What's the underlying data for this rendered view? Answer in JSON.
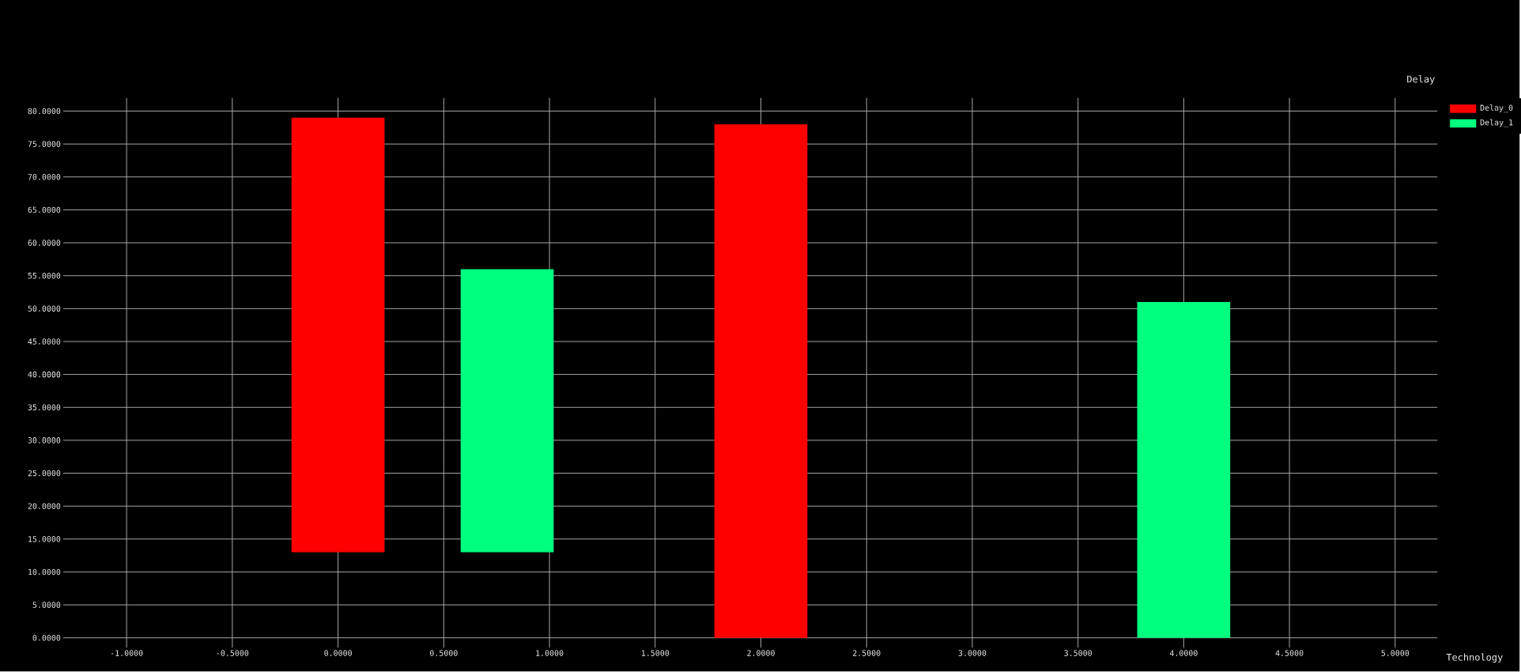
{
  "chart_data": {
    "type": "bar",
    "ylabel": "Delay",
    "xlabel": "Technology",
    "series": [
      {
        "name": "Delay_0",
        "color": "#ff0000",
        "x": [
          0,
          2
        ],
        "base": [
          13,
          0
        ],
        "values": [
          66,
          78
        ]
      },
      {
        "name": "Delay_1",
        "color": "#00ff7f",
        "x": [
          0.8,
          4
        ],
        "base": [
          13,
          0
        ],
        "values": [
          43,
          51
        ]
      }
    ],
    "xlim": [
      -1.3,
      5.2
    ],
    "ylim": [
      -1.5,
      82
    ],
    "xticks": [
      {
        "value": -1,
        "label": "-1.0000"
      },
      {
        "value": -0.5,
        "label": "-0.5000"
      },
      {
        "value": 0,
        "label": "0.0000"
      },
      {
        "value": 0.5,
        "label": "0.5000"
      },
      {
        "value": 1,
        "label": "1.0000"
      },
      {
        "value": 1.5,
        "label": "1.5000"
      },
      {
        "value": 2,
        "label": "2.0000"
      },
      {
        "value": 2.5,
        "label": "2.5000"
      },
      {
        "value": 3,
        "label": "3.0000"
      },
      {
        "value": 3.5,
        "label": "3.5000"
      },
      {
        "value": 4,
        "label": "4.0000"
      },
      {
        "value": 4.5,
        "label": "4.5000"
      },
      {
        "value": 5,
        "label": "5.0000"
      }
    ],
    "yticks": [
      {
        "value": 0,
        "label": "0.0000"
      },
      {
        "value": 5,
        "label": "5.0000"
      },
      {
        "value": 10,
        "label": "10.0000"
      },
      {
        "value": 15,
        "label": "15.0000"
      },
      {
        "value": 20,
        "label": "20.0000"
      },
      {
        "value": 25,
        "label": "25.0000"
      },
      {
        "value": 30,
        "label": "30.0000"
      },
      {
        "value": 35,
        "label": "35.0000"
      },
      {
        "value": 40,
        "label": "40.0000"
      },
      {
        "value": 45,
        "label": "45.0000"
      },
      {
        "value": 50,
        "label": "50.0000"
      },
      {
        "value": 55,
        "label": "55.0000"
      },
      {
        "value": 60,
        "label": "60.0000"
      },
      {
        "value": 65,
        "label": "65.0000"
      },
      {
        "value": 70,
        "label": "70.0000"
      },
      {
        "value": 75,
        "label": "75.0000"
      },
      {
        "value": 80,
        "label": "80.0000"
      }
    ],
    "grid": true,
    "legend": "top right"
  }
}
